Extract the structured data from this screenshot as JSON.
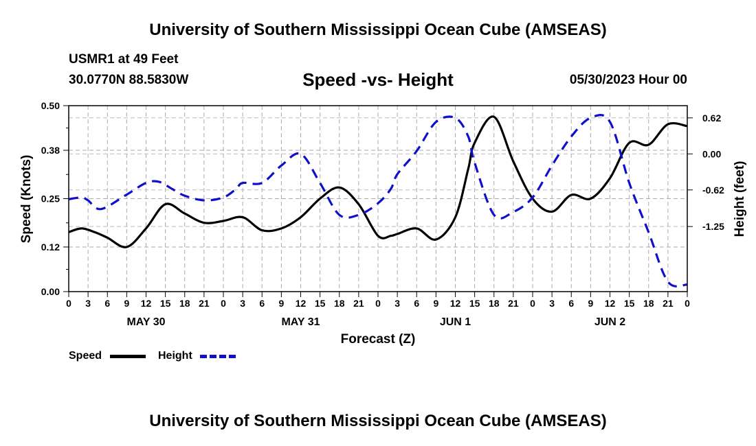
{
  "header": {
    "title": "University of Southern Mississippi Ocean Cube (AMSEAS)",
    "station": "USMR1 at 49 Feet",
    "coordinates": "30.0770N  88.5830W",
    "subtitle": "Speed -vs- Height",
    "datetime": "05/30/2023 Hour 00"
  },
  "footer": {
    "title": "University of Southern Mississippi Ocean Cube (AMSEAS)"
  },
  "legend": {
    "speed_label": "Speed",
    "height_label": "Height",
    "speed_color": "#000000",
    "height_color": "#1010cc"
  },
  "chart_data": {
    "type": "line",
    "xlabel": "Forecast (Z)",
    "ylabel": "Speed (Knots)",
    "y2label": "Height (feet)",
    "xlim": [
      0,
      96
    ],
    "ylim": [
      0,
      0.5
    ],
    "y2lim": [
      -2.37,
      0.83
    ],
    "x_ticks": [
      0,
      3,
      6,
      9,
      12,
      15,
      18,
      21,
      24,
      27,
      30,
      33,
      36,
      39,
      42,
      45,
      48,
      51,
      54,
      57,
      60,
      63,
      66,
      69,
      72,
      75,
      78,
      81,
      84,
      87,
      90,
      93,
      96
    ],
    "x_tick_labels": [
      "0",
      "3",
      "6",
      "9",
      "12",
      "15",
      "18",
      "21",
      "0",
      "3",
      "6",
      "9",
      "12",
      "15",
      "18",
      "21",
      "0",
      "3",
      "6",
      "9",
      "12",
      "15",
      "18",
      "21",
      "0",
      "3",
      "6",
      "9",
      "12",
      "15",
      "18",
      "21",
      "0"
    ],
    "date_labels": [
      {
        "x": 12,
        "label": "MAY 30"
      },
      {
        "x": 36,
        "label": "MAY 31"
      },
      {
        "x": 60,
        "label": "JUN 1"
      },
      {
        "x": 84,
        "label": "JUN 2"
      }
    ],
    "y_ticks": [
      0.0,
      0.12,
      0.25,
      0.38,
      0.5
    ],
    "y_tick_labels": [
      "0.00",
      "0.12",
      "0.25",
      "0.38",
      "0.50"
    ],
    "y2_ticks": [
      0.62,
      0.0,
      -0.62,
      -1.25
    ],
    "y2_tick_labels": [
      "0.62",
      "0.00",
      "-0.62",
      "-1.25"
    ],
    "grid": true,
    "series": [
      {
        "name": "Speed",
        "axis": "left",
        "color": "#000000",
        "style": "solid",
        "x": [
          0,
          2,
          4,
          6,
          9,
          12,
          15,
          18,
          21,
          24,
          27,
          30,
          33,
          36,
          39,
          42,
          45,
          48,
          50,
          51,
          54,
          57,
          60,
          62,
          63,
          66,
          69,
          72,
          75,
          78,
          81,
          84,
          87,
          90,
          93,
          96
        ],
        "y": [
          0.16,
          0.17,
          0.16,
          0.145,
          0.12,
          0.17,
          0.235,
          0.21,
          0.185,
          0.19,
          0.2,
          0.165,
          0.17,
          0.2,
          0.25,
          0.28,
          0.235,
          0.15,
          0.15,
          0.155,
          0.17,
          0.14,
          0.2,
          0.33,
          0.4,
          0.47,
          0.35,
          0.25,
          0.215,
          0.26,
          0.25,
          0.305,
          0.4,
          0.395,
          0.45,
          0.445
        ]
      },
      {
        "name": "Height",
        "axis": "right",
        "color": "#1010cc",
        "style": "dashed",
        "x": [
          0,
          2,
          3,
          5,
          9,
          12,
          14,
          16,
          18,
          21,
          24,
          26,
          27,
          30,
          33,
          36,
          39,
          42,
          45,
          48,
          50,
          51,
          54,
          57,
          60,
          62,
          63,
          66,
          69,
          72,
          75,
          78,
          81,
          84,
          87,
          90,
          93,
          96
        ],
        "y": [
          -0.78,
          -0.75,
          -0.8,
          -0.95,
          -0.7,
          -0.5,
          -0.48,
          -0.6,
          -0.72,
          -0.8,
          -0.75,
          -0.6,
          -0.5,
          -0.5,
          -0.2,
          0.0,
          -0.5,
          -1.05,
          -1.05,
          -0.85,
          -0.6,
          -0.35,
          0.05,
          0.55,
          0.62,
          0.3,
          -0.15,
          -1.05,
          -1.0,
          -0.75,
          -0.2,
          0.3,
          0.62,
          0.55,
          -0.5,
          -1.35,
          -2.2,
          -2.25
        ]
      }
    ]
  }
}
